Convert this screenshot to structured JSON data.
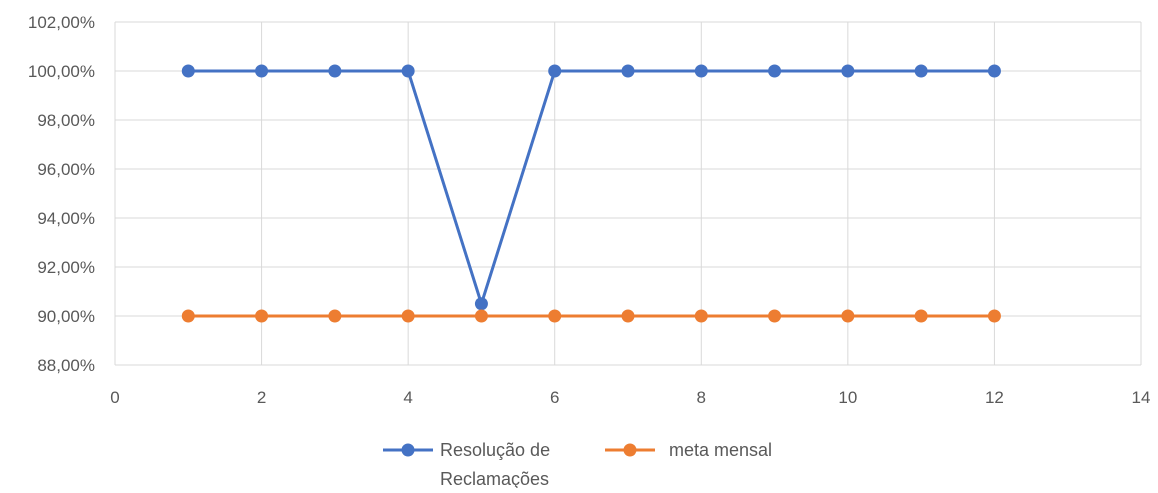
{
  "chart_data": {
    "type": "line",
    "title": "",
    "xlabel": "",
    "ylabel": "",
    "x": [
      1,
      2,
      3,
      4,
      5,
      6,
      7,
      8,
      9,
      10,
      11,
      12
    ],
    "xlim": [
      0,
      14
    ],
    "x_ticks": [
      0,
      2,
      4,
      6,
      8,
      10,
      12,
      14
    ],
    "x_tick_labels": [
      "0",
      "2",
      "4",
      "6",
      "8",
      "10",
      "12",
      "14"
    ],
    "ylim": [
      0.88,
      1.02
    ],
    "y_ticks": [
      0.88,
      0.9,
      0.92,
      0.94,
      0.96,
      0.98,
      1.0,
      1.02
    ],
    "y_tick_labels": [
      "88,00%",
      "90,00%",
      "92,00%",
      "94,00%",
      "96,00%",
      "98,00%",
      "100,00%",
      "102,00%"
    ],
    "grid": true,
    "legend_position": "bottom",
    "series": [
      {
        "name": "Resolução de Reclamações",
        "legend_lines": [
          "Resolução de",
          "Reclamações"
        ],
        "color": "#4472C4",
        "values": [
          1.0,
          1.0,
          1.0,
          1.0,
          0.905,
          1.0,
          1.0,
          1.0,
          1.0,
          1.0,
          1.0,
          1.0
        ]
      },
      {
        "name": "meta mensal",
        "legend_lines": [
          "meta mensal"
        ],
        "color": "#ED7D31",
        "values": [
          0.9,
          0.9,
          0.9,
          0.9,
          0.9,
          0.9,
          0.9,
          0.9,
          0.9,
          0.9,
          0.9,
          0.9
        ]
      }
    ]
  }
}
